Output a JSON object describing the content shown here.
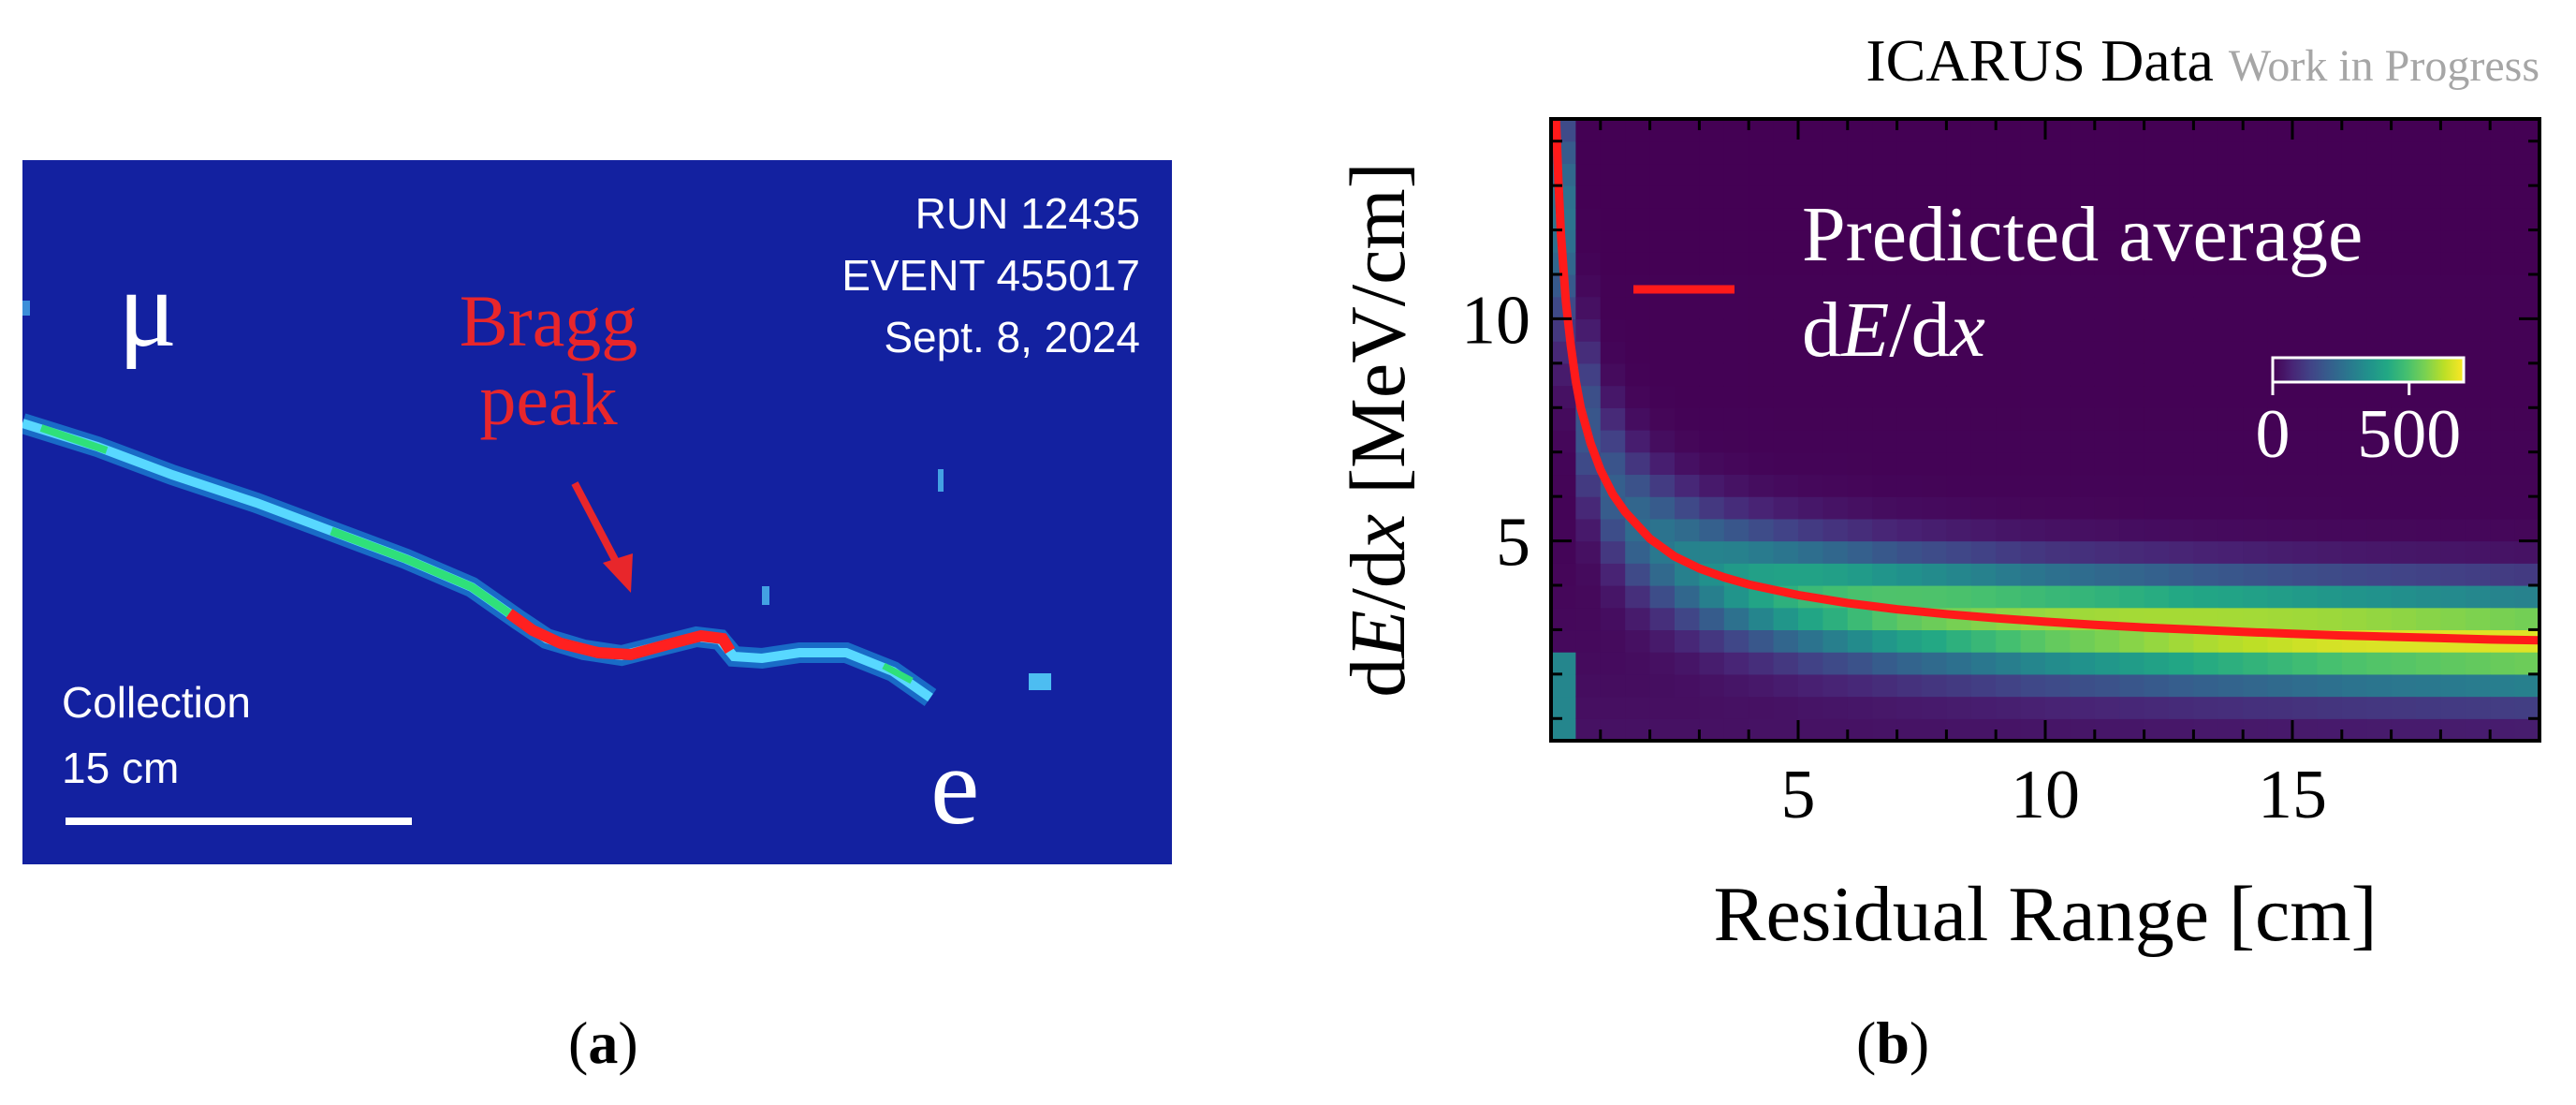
{
  "panel_a": {
    "letter": "(a)",
    "run_label": "RUN 12435",
    "event_label": "EVENT 455017",
    "date_label": "Sept. 8, 2024",
    "mu_label": "μ",
    "e_label": "e",
    "bragg_label_line1": "Bragg",
    "bragg_label_line2": "peak",
    "plane_label": "Collection",
    "scale_label": "15 cm",
    "colors": {
      "background": "#1321a0",
      "track": "#39c4ff",
      "bragg": "#e8262b"
    }
  },
  "panel_b": {
    "letter": "(b)"
  },
  "chart_data": {
    "type": "heatmap",
    "title": "ICARUS Data",
    "subtitle": "Work in Progress",
    "xlabel": "Residual Range [cm]",
    "xlim": [
      0,
      20
    ],
    "ylim": [
      0.5,
      14.5
    ],
    "xticks": [
      5,
      10,
      15
    ],
    "yticks": [
      5,
      10
    ],
    "colormap": "viridis",
    "colorbar": {
      "ticks": [
        0,
        500
      ],
      "range": [
        0,
        700
      ],
      "placement": "top-right"
    },
    "legend": {
      "placement": "top-right",
      "entry_line1": "Predicted average",
      "color": "#ff1a1a"
    },
    "curve": {
      "name": "Predicted average dE/dx",
      "x": [
        0.1,
        0.15,
        0.2,
        0.3,
        0.4,
        0.5,
        0.6,
        0.8,
        1.0,
        1.25,
        1.5,
        2.0,
        2.5,
        3.0,
        3.5,
        4.0,
        5.0,
        6.0,
        7.0,
        8.0,
        9.0,
        10.0,
        11.0,
        12.0,
        13.0,
        14.0,
        15.0,
        16.0,
        17.0,
        18.0,
        19.0,
        20.0
      ],
      "y": [
        14.5,
        13.1,
        11.9,
        10.4,
        9.4,
        8.6,
        8.0,
        7.2,
        6.6,
        6.05,
        5.65,
        5.05,
        4.65,
        4.38,
        4.18,
        4.02,
        3.78,
        3.6,
        3.46,
        3.35,
        3.26,
        3.18,
        3.11,
        3.05,
        3.0,
        2.95,
        2.91,
        2.87,
        2.84,
        2.81,
        2.78,
        2.76
      ]
    },
    "density_band": {
      "x": [
        0.1,
        0.5,
        1,
        1.5,
        2,
        3,
        4,
        5,
        7,
        10,
        13,
        16,
        20
      ],
      "center": [
        14.5,
        8.6,
        6.6,
        5.65,
        5.05,
        4.38,
        4.02,
        3.78,
        3.46,
        3.18,
        3.0,
        2.87,
        2.76
      ],
      "peak_counts": [
        320,
        180,
        190,
        220,
        260,
        320,
        390,
        450,
        520,
        580,
        620,
        650,
        650
      ]
    }
  }
}
